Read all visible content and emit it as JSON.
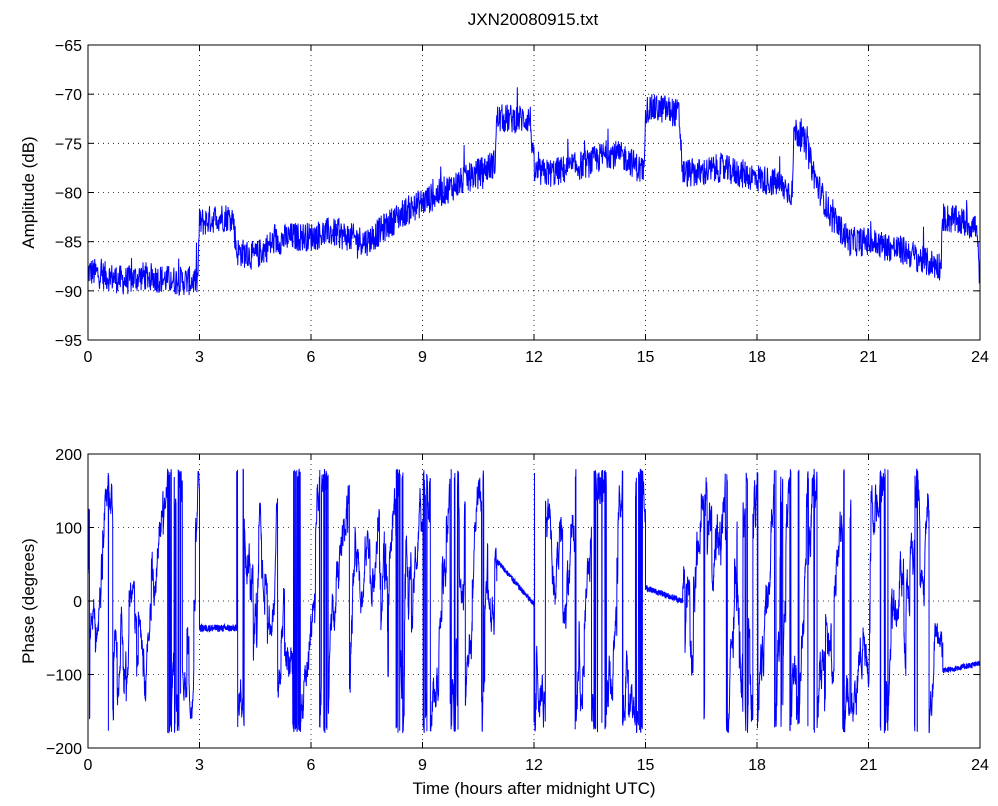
{
  "figure": {
    "title": "JXN20080915.txt"
  },
  "chart_data": [
    {
      "type": "line",
      "title": "JXN20080915.txt",
      "xlabel": "",
      "ylabel": "Amplitude (dB)",
      "xlim": [
        0,
        24
      ],
      "ylim": [
        -95,
        -65
      ],
      "xticks": [
        0,
        3,
        6,
        9,
        12,
        15,
        18,
        21,
        24
      ],
      "yticks": [
        -95,
        -90,
        -85,
        -80,
        -75,
        -70,
        -65
      ],
      "grid": true,
      "series_color": "#0000ff",
      "x": [
        0,
        0.5,
        1,
        1.5,
        2,
        2.5,
        2.95,
        3.0,
        3.1,
        3.5,
        3.9,
        4.0,
        4.5,
        5,
        5.5,
        6,
        6.5,
        7,
        7.5,
        8,
        8.5,
        9,
        9.5,
        10,
        10.5,
        10.95,
        11.0,
        11.5,
        11.9,
        12.0,
        12.5,
        13,
        13.5,
        14,
        14.5,
        14.95,
        15.0,
        15.5,
        15.9,
        16.0,
        16.5,
        17,
        17.5,
        18,
        18.5,
        18.95,
        19.0,
        19.3,
        19.6,
        20,
        20.5,
        21,
        21.5,
        22,
        22.5,
        22.95,
        23.0,
        23.5,
        23.9,
        24.0
      ],
      "y": [
        -88,
        -88.5,
        -89,
        -88.5,
        -88.8,
        -89,
        -89,
        -83,
        -83,
        -82.5,
        -82.5,
        -86,
        -86.5,
        -85,
        -84.5,
        -84.5,
        -84,
        -84.5,
        -85,
        -83.5,
        -82,
        -81,
        -80,
        -79,
        -78,
        -77,
        -72.5,
        -72.5,
        -72.5,
        -78,
        -78,
        -77.5,
        -77,
        -76,
        -76.5,
        -78,
        -71.5,
        -71.5,
        -72,
        -78,
        -78,
        -77.5,
        -78,
        -78.5,
        -79,
        -80,
        -73.5,
        -75,
        -79,
        -82.5,
        -85,
        -85,
        -85.5,
        -86,
        -87,
        -87.5,
        -82.5,
        -83,
        -83.5,
        -89
      ],
      "noise": 1.5
    },
    {
      "type": "line",
      "title": "",
      "xlabel": "Time (hours after midnight UTC)",
      "ylabel": "Phase (degrees)",
      "xlim": [
        0,
        24
      ],
      "ylim": [
        -200,
        200
      ],
      "xticks": [
        0,
        3,
        6,
        9,
        12,
        15,
        18,
        21,
        24
      ],
      "yticks": [
        -200,
        -100,
        0,
        100,
        200
      ],
      "grid": true,
      "series_color": "#0000ff",
      "segments": [
        {
          "x0": 0,
          "x1": 3.0,
          "mode": "wrap",
          "rate": 5
        },
        {
          "x0": 3.0,
          "x1": 4.0,
          "mode": "flat",
          "value": -37
        },
        {
          "x0": 4.0,
          "x1": 11.0,
          "mode": "wrap",
          "rate": 6
        },
        {
          "x0": 11.0,
          "x1": 12.0,
          "mode": "ramp",
          "from": 55,
          "to": -5
        },
        {
          "x0": 12.0,
          "x1": 15.0,
          "mode": "wrap",
          "rate": 6
        },
        {
          "x0": 15.0,
          "x1": 16.0,
          "mode": "ramp",
          "from": 18,
          "to": 0
        },
        {
          "x0": 16.0,
          "x1": 19.5,
          "mode": "wrap",
          "rate": 7
        },
        {
          "x0": 19.5,
          "x1": 23.0,
          "mode": "wrap",
          "rate": 6
        },
        {
          "x0": 23.0,
          "x1": 24.0,
          "mode": "ramp",
          "from": -95,
          "to": -85
        }
      ]
    }
  ]
}
